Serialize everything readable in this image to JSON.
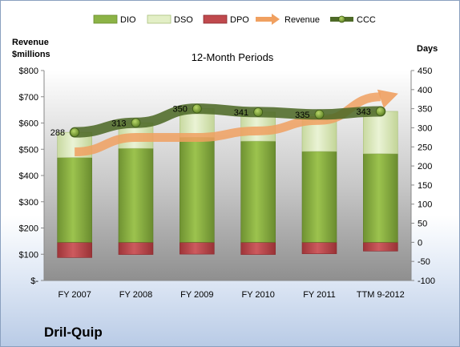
{
  "footer_title": "Dril-Quip",
  "chart_data": {
    "type": "bar",
    "title": "12-Month Periods",
    "left_axis_label": [
      "Revenue",
      "$millions"
    ],
    "right_axis_label": "Days",
    "categories": [
      "FY 2007",
      "FY 2008",
      "FY 2009",
      "FY 2010",
      "FY 2011",
      "TTM 9-2012"
    ],
    "left_axis": {
      "range": [
        0,
        800
      ],
      "ticks": [
        "$-",
        "$100",
        "$200",
        "$300",
        "$400",
        "$500",
        "$600",
        "$700",
        "$800"
      ]
    },
    "right_axis": {
      "range": [
        -100,
        450
      ],
      "ticks": [
        "-100",
        "-50",
        "0",
        "50",
        "100",
        "150",
        "200",
        "250",
        "300",
        "350",
        "400",
        "450"
      ]
    },
    "series": [
      {
        "name": "DIO",
        "kind": "stacked-bar",
        "axis": "right",
        "color": "#7fa33b",
        "values": [
          222,
          246,
          275,
          265,
          238,
          232
        ]
      },
      {
        "name": "DSO",
        "kind": "stacked-bar",
        "axis": "right",
        "color": "#d7e6b5",
        "values": [
          66,
          67,
          75,
          76,
          97,
          111
        ]
      },
      {
        "name": "DPO",
        "kind": "negative-bar",
        "axis": "right",
        "color": "#b8464a",
        "values": [
          -40,
          -32,
          -31,
          -32,
          -30,
          -23
        ]
      },
      {
        "name": "Revenue",
        "kind": "line",
        "axis": "left",
        "color": "#f0a060",
        "values": [
          490,
          545,
          545,
          570,
          610,
          700
        ]
      },
      {
        "name": "CCC",
        "kind": "line",
        "axis": "right",
        "color": "#4e6a28",
        "values": [
          288,
          313,
          350,
          341,
          335,
          343
        ]
      }
    ],
    "ccc_labels": [
      "288",
      "313",
      "350",
      "341",
      "335",
      "343"
    ],
    "legend": [
      "DIO",
      "DSO",
      "DPO",
      "Revenue",
      "CCC"
    ],
    "legend_position": "top",
    "grid": false
  }
}
